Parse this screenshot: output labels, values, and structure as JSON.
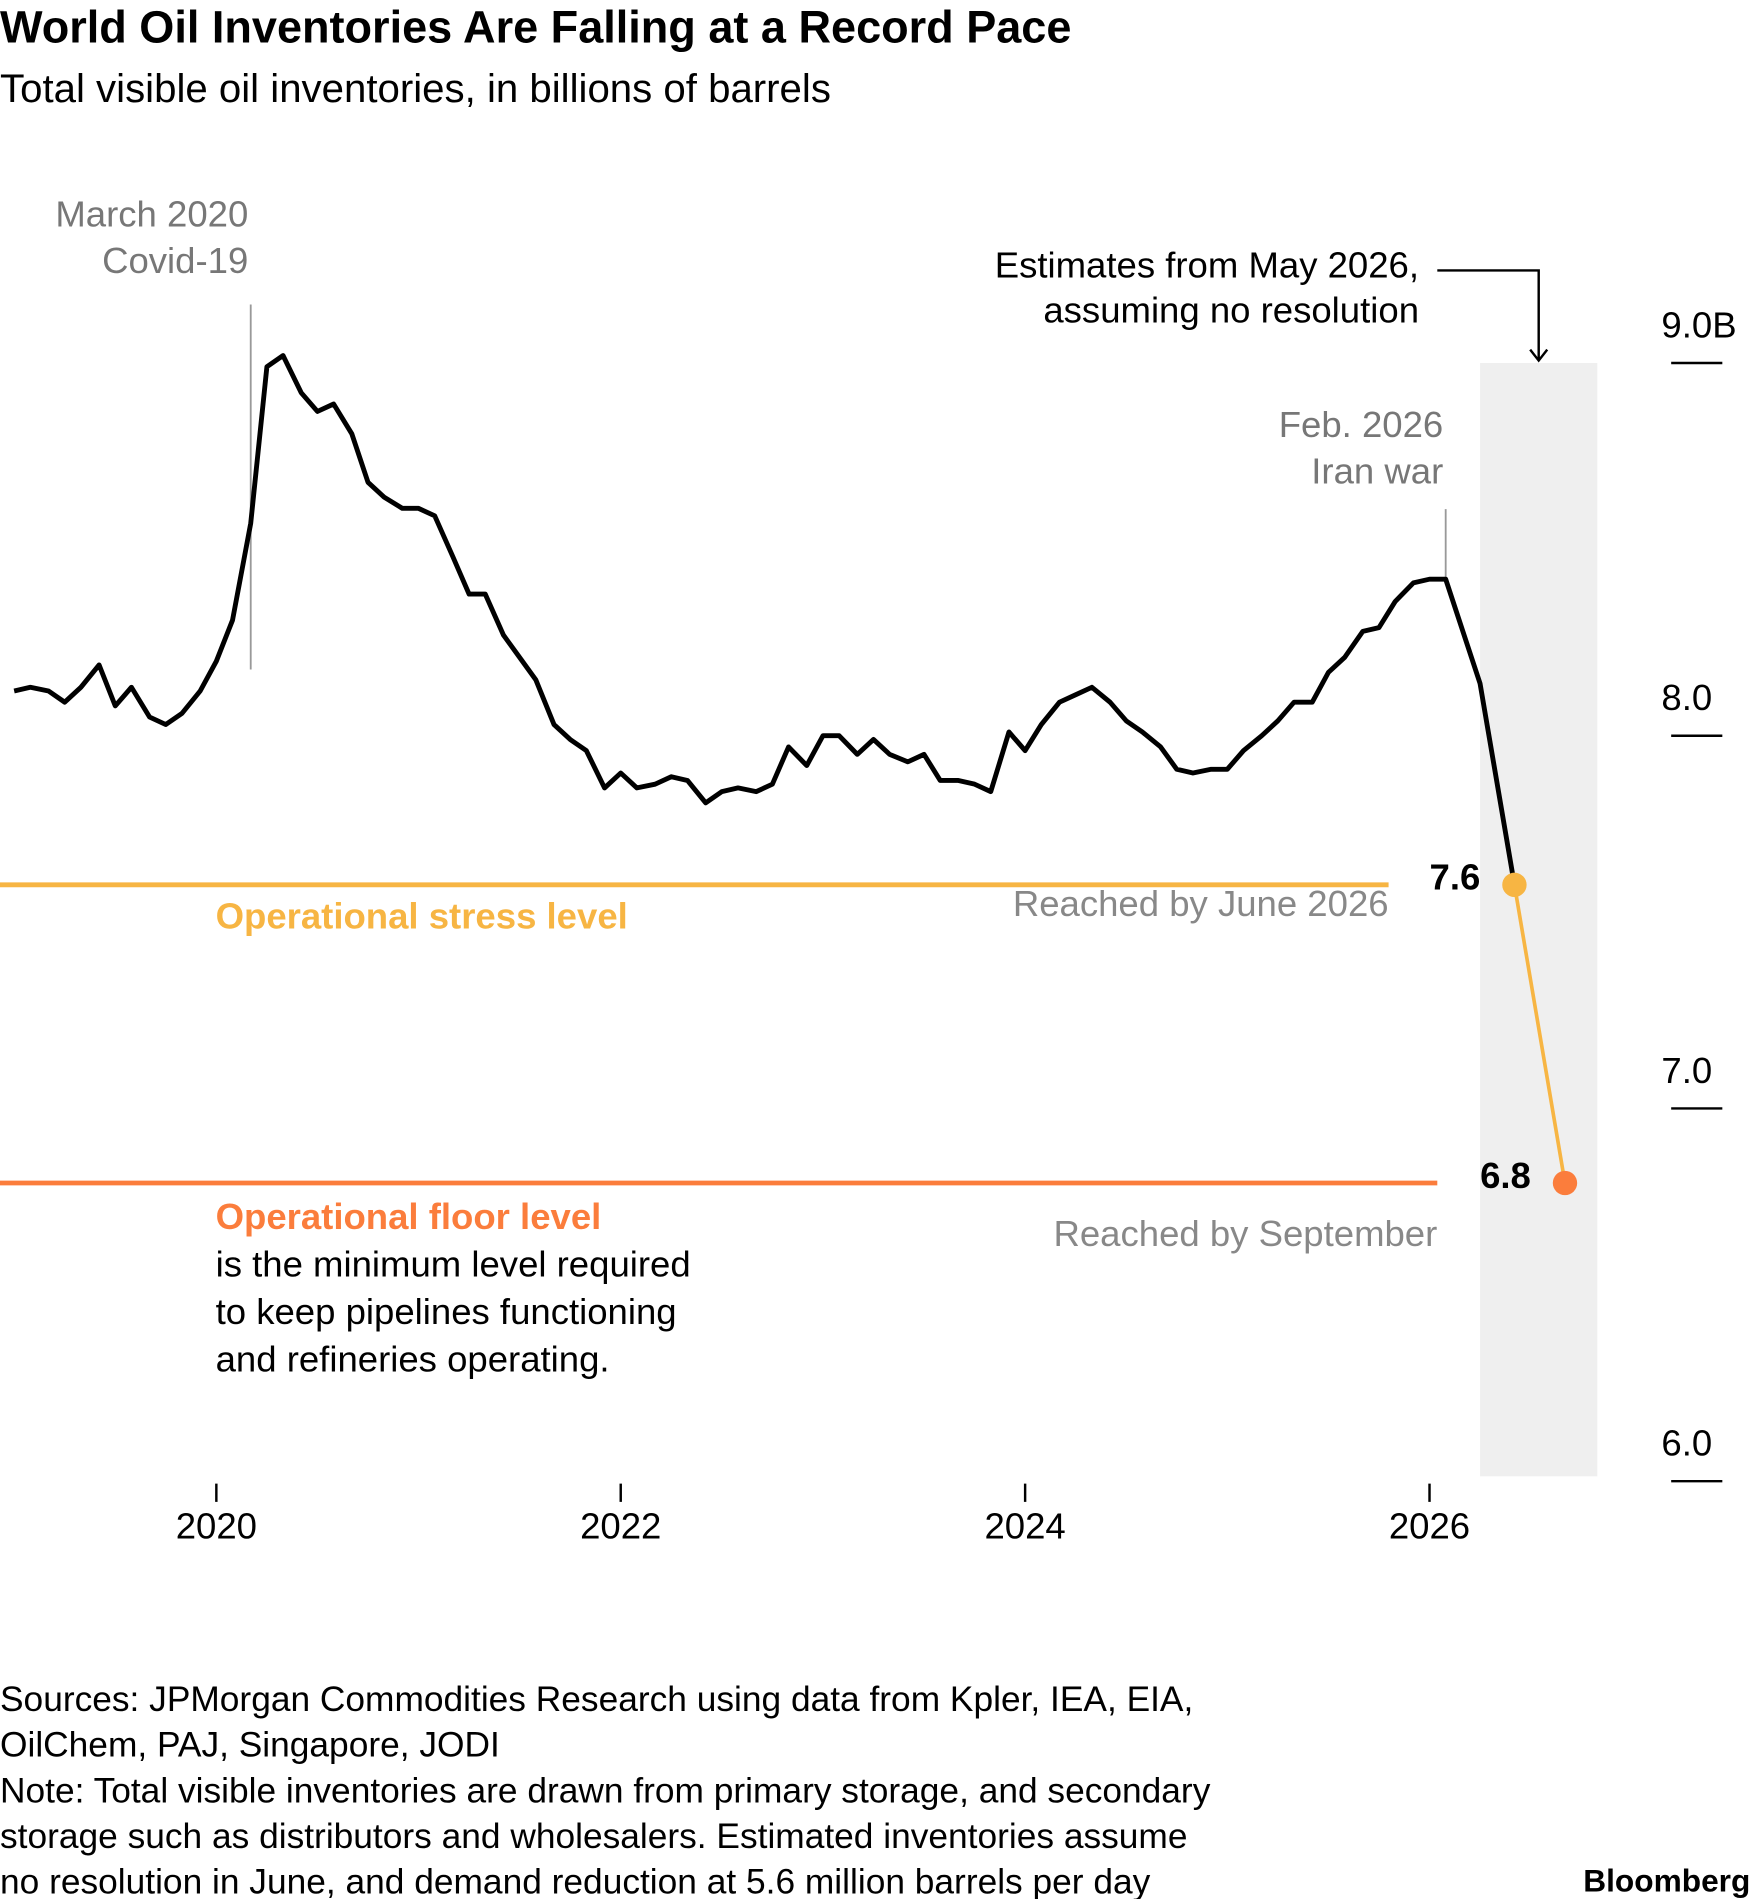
{
  "chart_data": {
    "type": "line",
    "title": "World Oil Inventories Are Falling at a Record Pace",
    "subtitle": "Total visible oil inventories, in billions of barrels",
    "xlim": [
      2018.93,
      2026.9
    ],
    "xticks": [
      2020,
      2022,
      2024,
      2026
    ],
    "ylim": [
      6,
      9
    ],
    "yticks": [
      {
        "value": 6,
        "label": "6.0"
      },
      {
        "value": 7,
        "label": "7.0"
      },
      {
        "value": 8,
        "label": "8.0"
      },
      {
        "value": 9,
        "label": "9.0B"
      }
    ],
    "grid": false,
    "series": [
      {
        "color": "#000000",
        "x": [
          2019,
          2019.08,
          2019.17,
          2019.25,
          2019.33,
          2019.42,
          2019.5,
          2019.58,
          2019.67,
          2019.75,
          2019.83,
          2019.92,
          2020,
          2020.08,
          2020.17,
          2020.25,
          2020.33,
          2020.42,
          2020.5,
          2020.58,
          2020.67,
          2020.75,
          2020.83,
          2020.92,
          2021,
          2021.08,
          2021.17,
          2021.25,
          2021.33,
          2021.42,
          2021.5,
          2021.58,
          2021.67,
          2021.75,
          2021.83,
          2021.92,
          2022,
          2022.08,
          2022.17,
          2022.25,
          2022.33,
          2022.42,
          2022.5,
          2022.58,
          2022.67,
          2022.75,
          2022.83,
          2022.92,
          2023,
          2023.08,
          2023.17,
          2023.25,
          2023.33,
          2023.42,
          2023.5,
          2023.58,
          2023.67,
          2023.75,
          2023.83,
          2023.92,
          2024,
          2024.08,
          2024.17,
          2024.25,
          2024.33,
          2024.42,
          2024.5,
          2024.58,
          2024.67,
          2024.75,
          2024.83,
          2024.92,
          2025,
          2025.08,
          2025.17,
          2025.25,
          2025.33,
          2025.42,
          2025.5,
          2025.58,
          2025.67,
          2025.75,
          2025.83,
          2025.92,
          2026,
          2026.08,
          2026.25,
          2026.42
        ],
        "values": [
          8.12,
          8.13,
          8.12,
          8.09,
          8.13,
          8.19,
          8.08,
          8.13,
          8.05,
          8.03,
          8.06,
          8.12,
          8.2,
          8.31,
          8.57,
          8.99,
          9.02,
          8.92,
          8.87,
          8.89,
          8.81,
          8.68,
          8.64,
          8.61,
          8.61,
          8.59,
          8.48,
          8.38,
          8.38,
          8.27,
          8.21,
          8.15,
          8.03,
          7.99,
          7.96,
          7.86,
          7.9,
          7.86,
          7.87,
          7.89,
          7.88,
          7.82,
          7.85,
          7.86,
          7.85,
          7.87,
          7.97,
          7.92,
          8,
          8,
          7.95,
          7.99,
          7.95,
          7.93,
          7.95,
          7.88,
          7.88,
          7.87,
          7.85,
          8.01,
          7.96,
          8.03,
          8.09,
          8.11,
          8.13,
          8.09,
          8.04,
          8.01,
          7.97,
          7.91,
          7.9,
          7.91,
          7.91,
          7.96,
          8,
          8.04,
          8.09,
          8.09,
          8.17,
          8.21,
          8.28,
          8.29,
          8.36,
          8.41,
          8.42,
          8.42,
          8.14,
          7.6
        ]
      },
      {
        "color": "#f7b543",
        "x": [
          2026.42,
          2026.67
        ],
        "values": [
          7.6,
          6.8
        ],
        "point_colors": [
          "#f7b543",
          "#fb7d3c"
        ]
      }
    ],
    "reference_lines": [
      {
        "value": 7.6,
        "color": "#f7b543",
        "label": "Operational stress level",
        "note": "Reached by June 2026"
      },
      {
        "value": 6.8,
        "color": "#fb7d3c",
        "label": "Operational floor level",
        "description": [
          "is the minimum level required",
          "to keep pipelines functioning",
          "and refineries operating."
        ],
        "note": "Reached by September"
      }
    ],
    "events": [
      {
        "x": 2020.17,
        "label": [
          "March 2020",
          "Covid-19"
        ]
      },
      {
        "x": 2026.08,
        "label": [
          "Feb. 2026",
          "Iran war"
        ]
      }
    ],
    "estimate_range": {
      "x": [
        2026.25,
        2026.83
      ],
      "label": [
        "Estimates from May 2026,",
        "assuming no resolution"
      ]
    },
    "source": [
      "Sources: JPMorgan Commodities Research using data from Kpler, IEA, EIA,",
      "OilChem, PAJ, Singapore, JODI"
    ],
    "note": [
      "Note: Total visible inventories are drawn from primary storage, and secondary",
      "storage such as distributors and wholesalers. Estimated inventories assume",
      "no resolution in June, and demand reduction at 5.6 million barrels per day"
    ],
    "credit": "Bloomberg"
  }
}
